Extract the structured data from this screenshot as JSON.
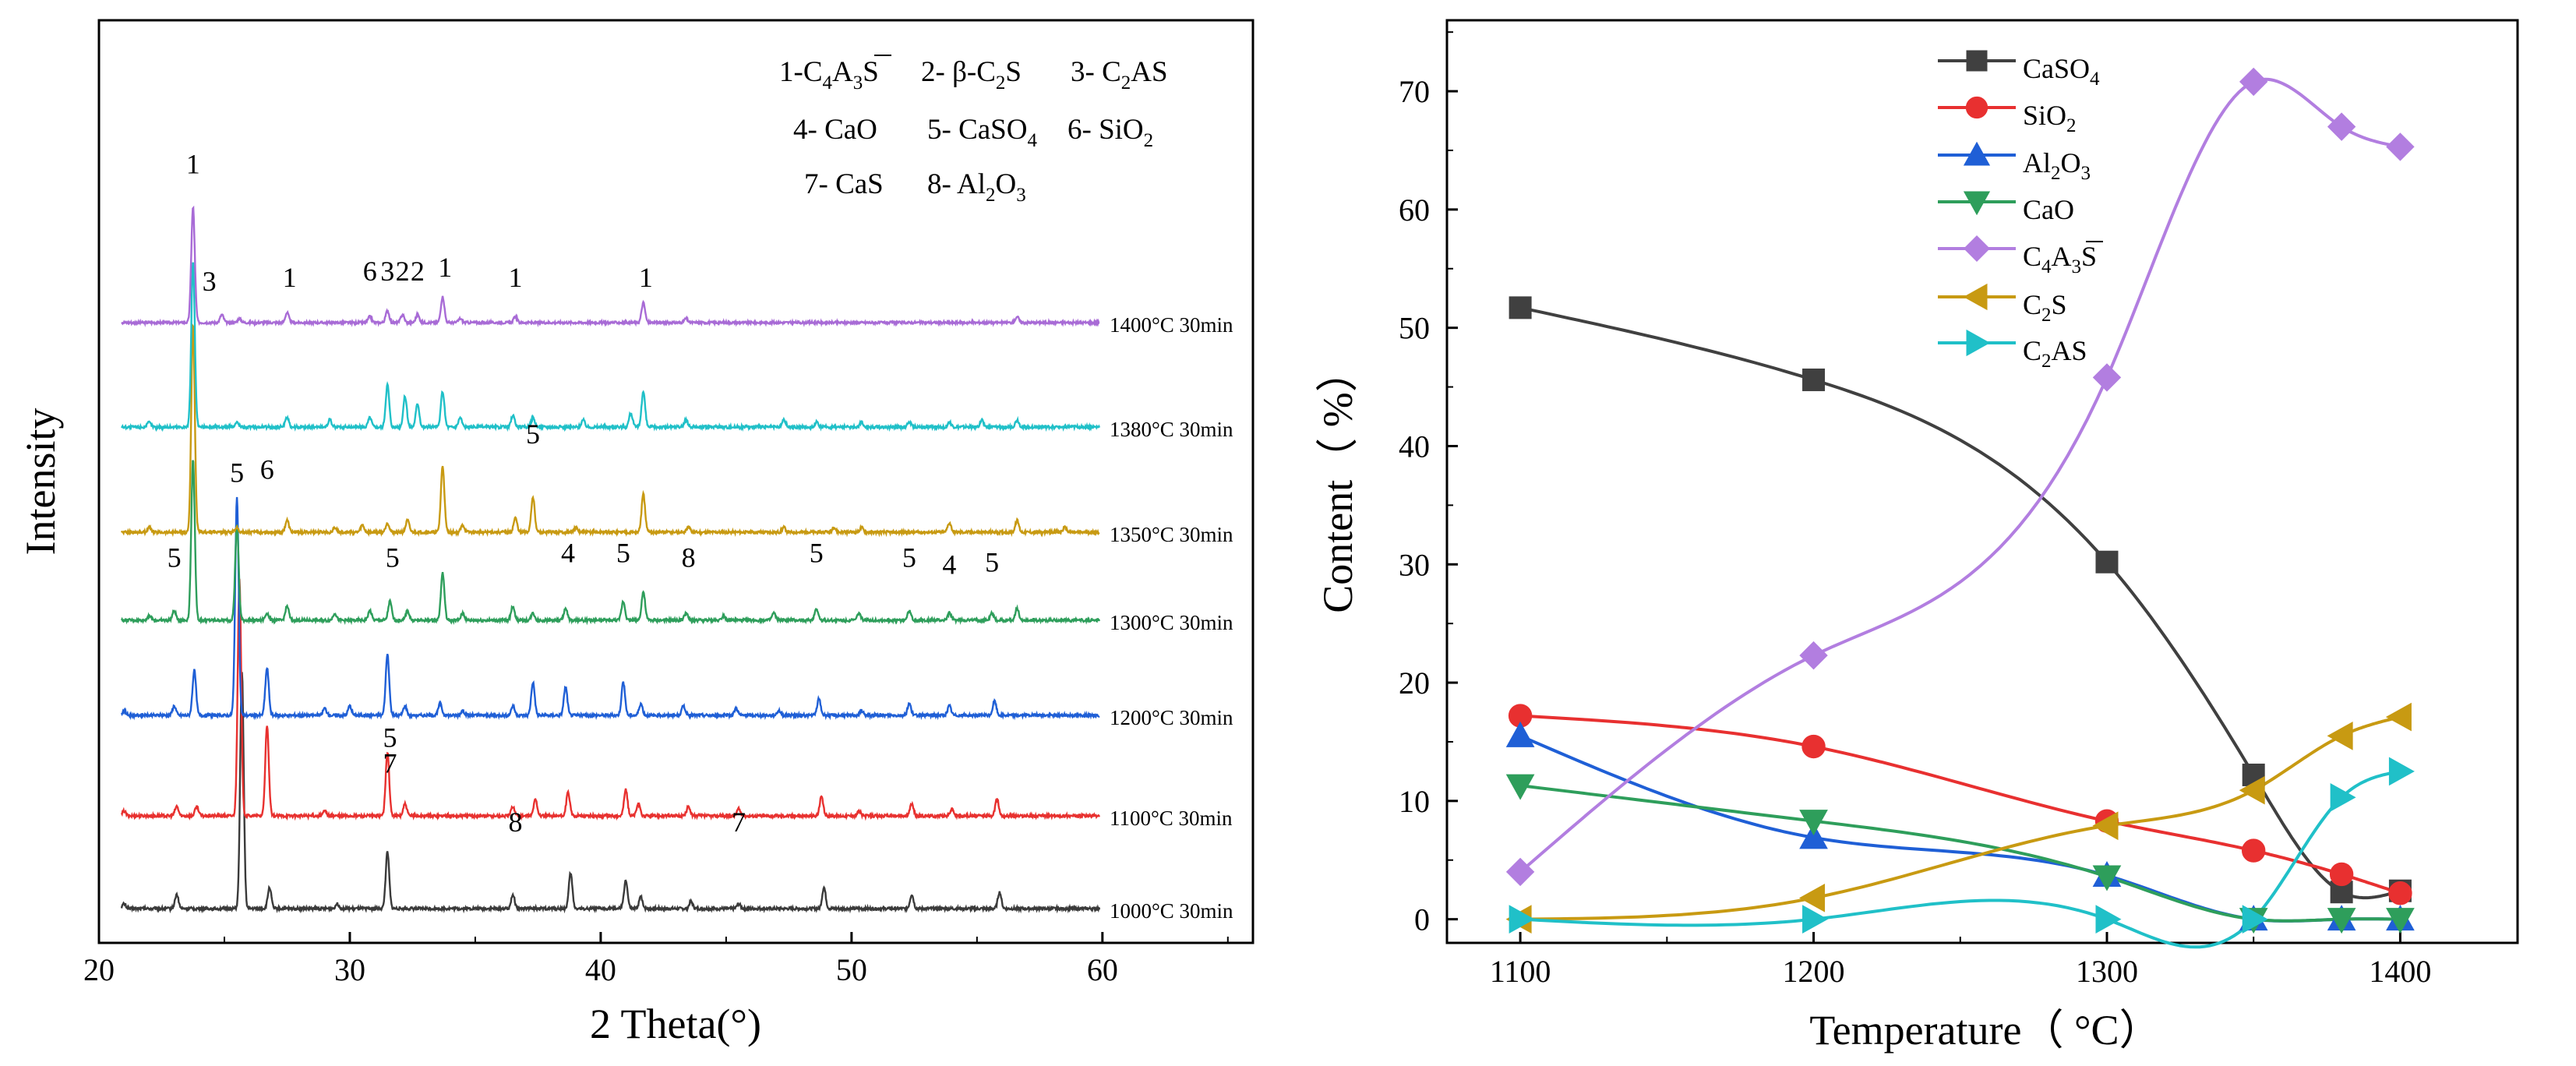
{
  "chart_data": [
    {
      "type": "line",
      "title": "",
      "xlabel": "2 Theta(°)",
      "ylabel": "Intensity",
      "xlim": [
        20,
        66
      ],
      "x_ticks": [
        20,
        30,
        40,
        50,
        60
      ],
      "grid": false,
      "phase_legend": [
        {
          "text": "1-C4A3S"
        },
        {
          "text": "2- β-C2S"
        },
        {
          "text": "3- C2AS"
        },
        {
          "text": "4- CaO"
        },
        {
          "text": "5- CaSO4"
        },
        {
          "text": "6- SiO2"
        },
        {
          "text": "7- CaS"
        },
        {
          "text": "8- Al2O3"
        }
      ],
      "series": [
        {
          "name": "1000°C 30min",
          "color": "#3a3a3a",
          "label": "1000°C 30min",
          "peaks": [
            [
              21.0,
              0.02
            ],
            [
              23.1,
              0.06
            ],
            [
              25.7,
              1.0
            ],
            [
              26.8,
              0.09
            ],
            [
              29.5,
              0.02
            ],
            [
              31.5,
              0.24
            ],
            [
              36.5,
              0.06
            ],
            [
              38.8,
              0.15
            ],
            [
              41.0,
              0.12
            ],
            [
              41.6,
              0.05
            ],
            [
              43.6,
              0.03
            ],
            [
              45.5,
              0.02
            ],
            [
              48.9,
              0.09
            ],
            [
              52.4,
              0.06
            ],
            [
              55.9,
              0.07
            ]
          ],
          "annotations": [
            {
              "t": "5",
              "x": 31.6,
              "h": 0.66
            },
            {
              "t": "7",
              "x": 31.6,
              "h": 0.55
            },
            {
              "t": "8",
              "x": 36.6,
              "h": 0.3
            },
            {
              "t": "7",
              "x": 45.5,
              "h": 0.3
            }
          ]
        },
        {
          "name": "1100°C 30min",
          "color": "#e8312f",
          "label": "1100°C 30min",
          "peaks": [
            [
              21.0,
              0.02
            ],
            [
              23.1,
              0.04
            ],
            [
              23.9,
              0.04
            ],
            [
              25.6,
              1.0
            ],
            [
              26.7,
              0.38
            ],
            [
              29.0,
              0.02
            ],
            [
              31.5,
              0.27
            ],
            [
              32.2,
              0.05
            ],
            [
              36.5,
              0.04
            ],
            [
              37.4,
              0.07
            ],
            [
              38.7,
              0.1
            ],
            [
              41.0,
              0.11
            ],
            [
              41.5,
              0.05
            ],
            [
              43.5,
              0.04
            ],
            [
              45.5,
              0.03
            ],
            [
              48.8,
              0.08
            ],
            [
              50.3,
              0.02
            ],
            [
              52.4,
              0.05
            ],
            [
              54.0,
              0.03
            ],
            [
              55.8,
              0.07
            ]
          ],
          "annotations": []
        },
        {
          "name": "1200°C 30min",
          "color": "#1f5fd6",
          "label": "1200°C 30min",
          "peaks": [
            [
              21.0,
              0.02
            ],
            [
              23.0,
              0.04
            ],
            [
              23.8,
              0.19
            ],
            [
              25.5,
              0.92
            ],
            [
              26.7,
              0.2
            ],
            [
              29.0,
              0.03
            ],
            [
              30.0,
              0.04
            ],
            [
              31.5,
              0.26
            ],
            [
              32.2,
              0.04
            ],
            [
              33.6,
              0.05
            ],
            [
              34.5,
              0.02
            ],
            [
              36.5,
              0.04
            ],
            [
              37.3,
              0.14
            ],
            [
              38.6,
              0.12
            ],
            [
              40.9,
              0.14
            ],
            [
              41.6,
              0.05
            ],
            [
              43.3,
              0.04
            ],
            [
              45.4,
              0.03
            ],
            [
              47.1,
              0.02
            ],
            [
              48.7,
              0.07
            ],
            [
              50.4,
              0.02
            ],
            [
              52.3,
              0.05
            ],
            [
              53.9,
              0.04
            ],
            [
              55.7,
              0.06
            ]
          ],
          "annotations": []
        },
        {
          "name": "1300°C 30min",
          "color": "#2e9e5b",
          "label": "1300°C 30min",
          "peaks": [
            [
              22.0,
              0.02
            ],
            [
              23.0,
              0.04
            ],
            [
              23.75,
              0.68
            ],
            [
              25.5,
              0.4
            ],
            [
              26.7,
              0.03
            ],
            [
              27.5,
              0.06
            ],
            [
              29.4,
              0.03
            ],
            [
              30.8,
              0.04
            ],
            [
              31.6,
              0.08
            ],
            [
              32.3,
              0.04
            ],
            [
              33.7,
              0.2
            ],
            [
              34.5,
              0.03
            ],
            [
              36.5,
              0.06
            ],
            [
              37.3,
              0.03
            ],
            [
              38.6,
              0.05
            ],
            [
              40.9,
              0.08
            ],
            [
              41.7,
              0.12
            ],
            [
              43.4,
              0.03
            ],
            [
              44.9,
              0.02
            ],
            [
              46.9,
              0.03
            ],
            [
              48.6,
              0.05
            ],
            [
              50.3,
              0.03
            ],
            [
              52.3,
              0.04
            ],
            [
              53.9,
              0.03
            ],
            [
              55.6,
              0.03
            ],
            [
              56.6,
              0.05
            ]
          ],
          "annotations": [
            {
              "t": "5",
              "x": 23.0,
              "h": 0.2
            },
            {
              "t": "5",
              "x": 25.5,
              "h": 0.56
            },
            {
              "t": "5",
              "x": 31.7,
              "h": 0.2
            },
            {
              "t": "4",
              "x": 38.7,
              "h": 0.22
            },
            {
              "t": "5",
              "x": 40.9,
              "h": 0.22
            },
            {
              "t": "8",
              "x": 43.5,
              "h": 0.2
            },
            {
              "t": "5",
              "x": 48.6,
              "h": 0.22
            },
            {
              "t": "5",
              "x": 52.3,
              "h": 0.2
            },
            {
              "t": "4",
              "x": 53.9,
              "h": 0.17
            },
            {
              "t": "5",
              "x": 55.6,
              "h": 0.18
            }
          ]
        },
        {
          "name": "1350°C 30min",
          "color": "#c89a12",
          "label": "1350°C 30min",
          "peaks": [
            [
              22.0,
              0.02
            ],
            [
              23.75,
              0.88
            ],
            [
              25.5,
              0.02
            ],
            [
              27.5,
              0.05
            ],
            [
              29.4,
              0.02
            ],
            [
              30.5,
              0.03
            ],
            [
              31.5,
              0.04
            ],
            [
              32.3,
              0.05
            ],
            [
              33.7,
              0.28
            ],
            [
              34.5,
              0.03
            ],
            [
              36.6,
              0.06
            ],
            [
              37.3,
              0.15
            ],
            [
              39.0,
              0.02
            ],
            [
              41.7,
              0.16
            ],
            [
              43.5,
              0.02
            ],
            [
              47.3,
              0.02
            ],
            [
              49.3,
              0.02
            ],
            [
              50.4,
              0.02
            ],
            [
              53.9,
              0.04
            ],
            [
              56.6,
              0.05
            ],
            [
              58.5,
              0.02
            ]
          ],
          "annotations": [
            {
              "t": "6",
              "x": 26.7,
              "h": 0.2
            },
            {
              "t": "5",
              "x": 37.3,
              "h": 0.35
            }
          ]
        },
        {
          "name": "1380°C 30min",
          "color": "#20c0c8",
          "label": "1380°C 30min",
          "peaks": [
            [
              22.0,
              0.02
            ],
            [
              23.75,
              0.7
            ],
            [
              25.5,
              0.02
            ],
            [
              27.5,
              0.04
            ],
            [
              29.2,
              0.03
            ],
            [
              30.8,
              0.04
            ],
            [
              31.5,
              0.18
            ],
            [
              32.2,
              0.13
            ],
            [
              32.7,
              0.1
            ],
            [
              33.7,
              0.15
            ],
            [
              34.4,
              0.04
            ],
            [
              36.5,
              0.05
            ],
            [
              37.3,
              0.04
            ],
            [
              39.3,
              0.03
            ],
            [
              41.2,
              0.06
            ],
            [
              41.7,
              0.15
            ],
            [
              43.4,
              0.03
            ],
            [
              47.3,
              0.03
            ],
            [
              48.6,
              0.02
            ],
            [
              50.4,
              0.02
            ],
            [
              52.3,
              0.02
            ],
            [
              53.9,
              0.02
            ],
            [
              55.2,
              0.03
            ],
            [
              56.6,
              0.03
            ]
          ],
          "annotations": []
        },
        {
          "name": "1400°C 30min",
          "color": "#a86bd6",
          "label": "1400°C 30min",
          "peaks": [
            [
              23.75,
              0.58
            ],
            [
              24.9,
              0.04
            ],
            [
              25.6,
              0.02
            ],
            [
              27.5,
              0.05
            ],
            [
              30.8,
              0.03
            ],
            [
              31.5,
              0.06
            ],
            [
              32.1,
              0.04
            ],
            [
              32.7,
              0.04
            ],
            [
              33.7,
              0.13
            ],
            [
              34.4,
              0.02
            ],
            [
              36.6,
              0.03
            ],
            [
              41.7,
              0.1
            ],
            [
              43.4,
              0.02
            ],
            [
              56.6,
              0.03
            ]
          ],
          "annotations": [
            {
              "t": "1",
              "x": 23.75,
              "h": 0.72
            },
            {
              "t": "3",
              "x": 24.4,
              "h": 0.13
            },
            {
              "t": "1",
              "x": 27.6,
              "h": 0.15
            },
            {
              "t": "6",
              "x": 30.8,
              "h": 0.18
            },
            {
              "t": "3",
              "x": 31.5,
              "h": 0.18
            },
            {
              "t": "2",
              "x": 32.1,
              "h": 0.18
            },
            {
              "t": "2",
              "x": 32.7,
              "h": 0.18
            },
            {
              "t": "1",
              "x": 33.8,
              "h": 0.2
            },
            {
              "t": "1",
              "x": 36.6,
              "h": 0.15
            },
            {
              "t": "1",
              "x": 41.8,
              "h": 0.15
            }
          ]
        }
      ]
    },
    {
      "type": "line",
      "title": "",
      "xlabel": "Temperature（ °C）",
      "ylabel": "Content（ %）",
      "xlim": [
        1075,
        1440
      ],
      "ylim": [
        -2,
        76
      ],
      "x_ticks": [
        1100,
        1200,
        1300,
        1400
      ],
      "y_ticks": [
        0,
        10,
        20,
        30,
        40,
        50,
        60,
        70
      ],
      "grid": false,
      "legend_position": "top-center",
      "x": [
        1100,
        1200,
        1300,
        1350,
        1380,
        1400
      ],
      "series": [
        {
          "name": "CaSO4",
          "color": "#404040",
          "marker": "square",
          "values": [
            51.7,
            45.6,
            30.2,
            12.2,
            2.3,
            2.4
          ]
        },
        {
          "name": "SiO2",
          "color": "#e83030",
          "marker": "circle",
          "values": [
            17.2,
            14.6,
            8.3,
            5.8,
            3.8,
            2.2
          ]
        },
        {
          "name": "Al2O3",
          "color": "#1f5fd6",
          "marker": "triangle-up",
          "values": [
            15.5,
            6.9,
            3.7,
            0.0,
            0.0,
            0.0
          ]
        },
        {
          "name": "CaO",
          "color": "#2e9e5b",
          "marker": "triangle-down",
          "values": [
            11.3,
            8.3,
            3.6,
            0.0,
            0.0,
            0.0
          ]
        },
        {
          "name": "C4A3S",
          "color": "#b27ee0",
          "marker": "diamond",
          "values": [
            4.0,
            22.3,
            45.8,
            70.8,
            67.0,
            65.3
          ]
        },
        {
          "name": "C2S",
          "color": "#c89a12",
          "marker": "triangle-left",
          "values": [
            0.0,
            1.8,
            7.9,
            10.9,
            15.5,
            17.1
          ]
        },
        {
          "name": "C2AS",
          "color": "#20c0c8",
          "marker": "triangle-right",
          "values": [
            0.0,
            0.0,
            0.0,
            0.0,
            10.3,
            12.5
          ]
        }
      ]
    }
  ]
}
